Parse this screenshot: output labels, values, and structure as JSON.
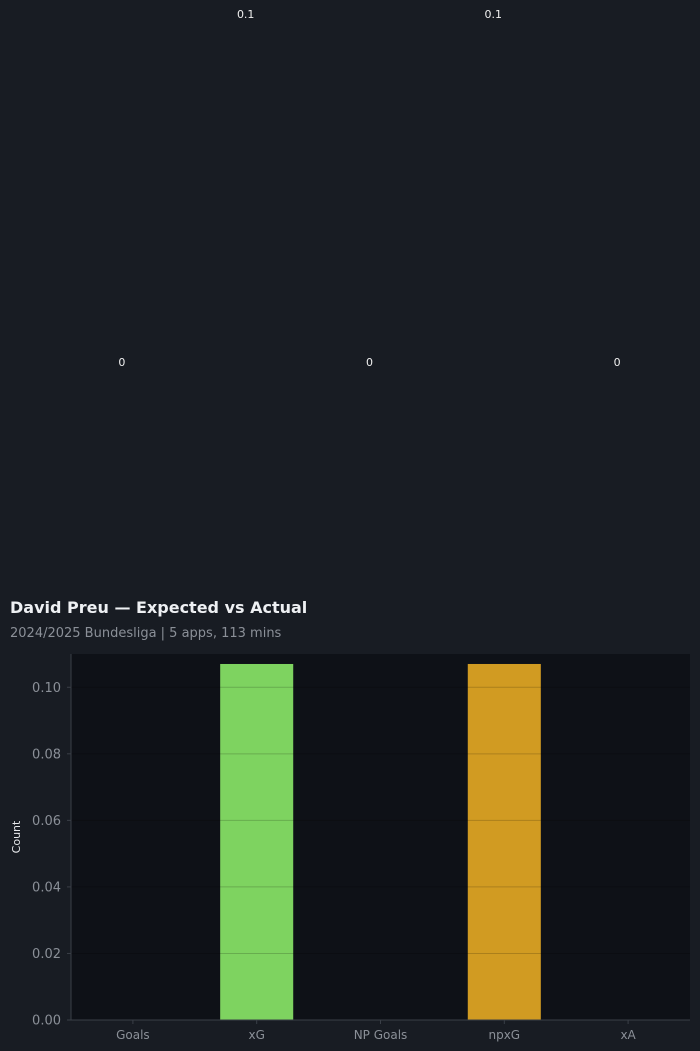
{
  "chart_data": {
    "type": "bar",
    "title": "David Preu — Expected vs Actual",
    "subtitle": "2024/2025 Bundesliga | 5 apps, 113 mins",
    "categories": [
      "Goals",
      "xG",
      "NP Goals",
      "npxG",
      "xA"
    ],
    "values": [
      0,
      0.107,
      0,
      0.107,
      0
    ],
    "value_labels": [
      "0",
      "0.1",
      "0",
      "0.1",
      "0"
    ],
    "colors": [
      "#7ed360",
      "#7ed360",
      "#7ed360",
      "#d19b22",
      "#d19b22"
    ],
    "xlabel": "",
    "ylabel": "Count",
    "ylim": [
      0,
      0.11
    ],
    "yticks": [
      0.0,
      0.02,
      0.04,
      0.06,
      0.08,
      0.1
    ],
    "ytick_labels": [
      "0.00",
      "0.02",
      "0.04",
      "0.06",
      "0.08",
      "0.10"
    ],
    "grid": true,
    "plot_background": "#0e1117",
    "page_background": "#181c23"
  }
}
